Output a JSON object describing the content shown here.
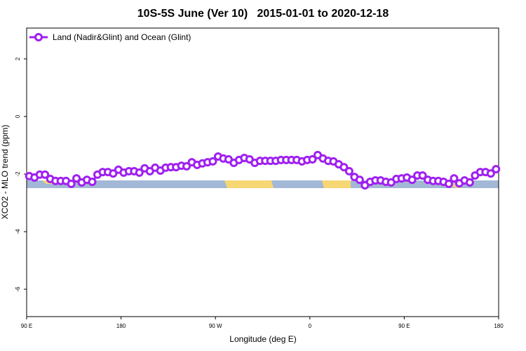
{
  "chart_data": {
    "type": "line",
    "title": "10S-5S June (Ver 10)   2015-01-01 to 2020-12-18",
    "x_label": "Longitude (deg E)",
    "y_label": "XCO2 - MLO trend (ppm)",
    "xlim": [
      90,
      540
    ],
    "xticks": [
      {
        "value": 90,
        "label": "90 E"
      },
      180,
      {
        "value": 270,
        "label": "90 W"
      },
      {
        "value": 360,
        "label": "0"
      },
      {
        "value": 450,
        "label": "90 E"
      },
      {
        "value": 540,
        "label": "180"
      }
    ],
    "ylim": [
      -6.95,
      3.07
    ],
    "yticks": [
      -6,
      -4,
      -2,
      0,
      2
    ],
    "legend": "top-left",
    "series": [
      {
        "name": "Land (Nadir&Glint) and Ocean (Glint)",
        "color": "#a020f0",
        "x": [
          92.5,
          97.5,
          102.5,
          107.5,
          112.5,
          117.5,
          122.5,
          127.5,
          132.5,
          137.5,
          142.5,
          147.5,
          152.5,
          157.5,
          162.5,
          167.5,
          172.5,
          177.5,
          182.5,
          187.5,
          192.5,
          197.5,
          202.5,
          207.5,
          212.5,
          217.5,
          222.5,
          227.5,
          232.5,
          237.5,
          242.5,
          247.5,
          252.5,
          257.5,
          262.5,
          267.5,
          272.5,
          277.5,
          282.5,
          287.5,
          292.5,
          297.5,
          302.5,
          307.5,
          312.5,
          317.5,
          322.5,
          327.5,
          332.5,
          337.5,
          342.5,
          347.5,
          352.5,
          357.5,
          362.5,
          367.5,
          372.5,
          377.5,
          382.5,
          387.5,
          392.5,
          397.5,
          402.5,
          407.5,
          412.5,
          417.5,
          422.5,
          427.5,
          432.5,
          437.5,
          442.5,
          447.5,
          452.5,
          457.5,
          462.5,
          467.5,
          472.5,
          477.5,
          482.5,
          487.5,
          492.5,
          497.5,
          502.5,
          507.5,
          512.5,
          517.5,
          522.5,
          527.5,
          532.5,
          537.5
        ],
        "values": [
          -2.07,
          -2.12,
          -2.02,
          -2.02,
          -2.17,
          -2.24,
          -2.24,
          -2.24,
          -2.34,
          -2.15,
          -2.29,
          -2.2,
          -2.27,
          -2.02,
          -1.93,
          -1.93,
          -1.98,
          -1.85,
          -1.95,
          -1.9,
          -1.9,
          -1.95,
          -1.8,
          -1.9,
          -1.78,
          -1.88,
          -1.78,
          -1.76,
          -1.76,
          -1.71,
          -1.73,
          -1.59,
          -1.68,
          -1.63,
          -1.59,
          -1.56,
          -1.39,
          -1.46,
          -1.49,
          -1.61,
          -1.51,
          -1.44,
          -1.49,
          -1.61,
          -1.54,
          -1.54,
          -1.54,
          -1.54,
          -1.51,
          -1.51,
          -1.51,
          -1.51,
          -1.56,
          -1.51,
          -1.49,
          -1.34,
          -1.46,
          -1.54,
          -1.56,
          -1.66,
          -1.76,
          -1.9,
          -2.1,
          -2.2,
          -2.39,
          -2.27,
          -2.22,
          -2.22,
          -2.27,
          -2.29,
          -2.17,
          -2.15,
          -2.12,
          -2.2,
          -2.05,
          -2.05,
          -2.2,
          -2.24,
          -2.24,
          -2.27,
          -2.34,
          -2.15,
          -2.32,
          -2.22,
          -2.29,
          -2.05,
          -1.93,
          -1.93,
          -1.98,
          -1.83
        ]
      }
    ]
  }
}
